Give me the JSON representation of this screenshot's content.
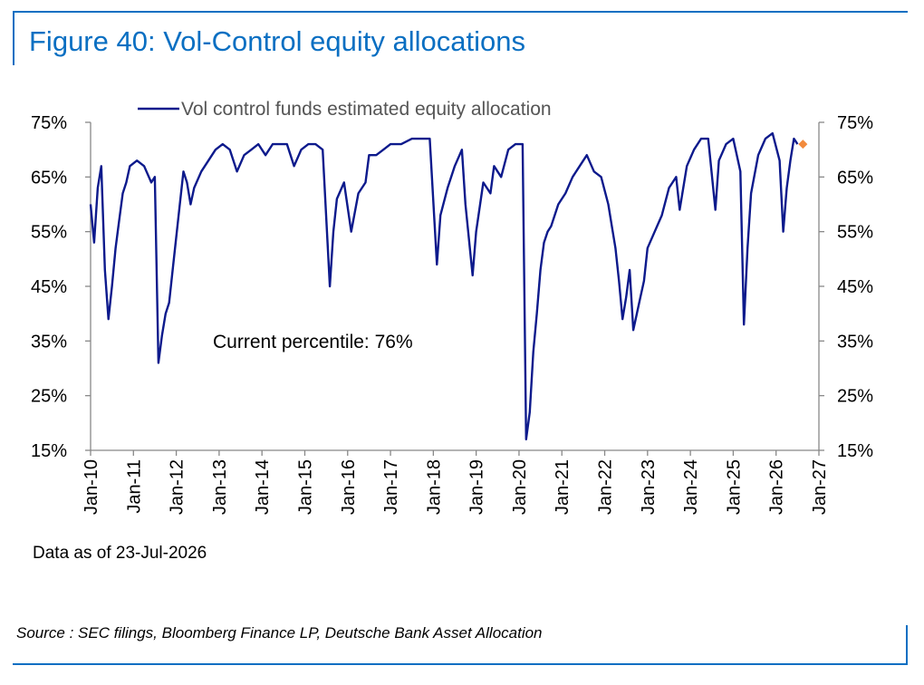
{
  "figure": {
    "title": "Figure 40: Vol-Control equity allocations",
    "data_note": "Data as of 23-Jul-2026",
    "source": "Source : SEC filings, Bloomberg Finance LP, Deutsche Bank Asset Allocation"
  },
  "colors": {
    "accent": "#0a6fc2",
    "series": "#0d1a8c",
    "marker": "#f28a3c",
    "axis": "#888888"
  },
  "chart_data": {
    "type": "line",
    "legend": [
      "Vol control funds estimated equity allocation"
    ],
    "legend_position": "top",
    "annotation": "Current percentile: 76%",
    "grid": false,
    "ylim": [
      15,
      75
    ],
    "yticks": [
      15,
      25,
      35,
      45,
      55,
      65,
      75
    ],
    "ytick_labels": [
      "15%",
      "25%",
      "35%",
      "45%",
      "55%",
      "65%",
      "75%"
    ],
    "xlim": [
      "2010-01",
      "2027-01"
    ],
    "xtick_labels": [
      "Jan-10",
      "Jan-11",
      "Jan-12",
      "Jan-13",
      "Jan-14",
      "Jan-15",
      "Jan-16",
      "Jan-17",
      "Jan-18",
      "Jan-19",
      "Jan-20",
      "Jan-21",
      "Jan-22",
      "Jan-23",
      "Jan-24",
      "Jan-25",
      "Jan-26",
      "Jan-27"
    ],
    "series": [
      {
        "name": "Vol control funds estimated equity allocation",
        "points": [
          [
            "2010-01",
            60
          ],
          [
            "2010-02",
            53
          ],
          [
            "2010-03",
            63
          ],
          [
            "2010-04",
            67
          ],
          [
            "2010-05",
            48
          ],
          [
            "2010-06",
            39
          ],
          [
            "2010-07",
            45
          ],
          [
            "2010-08",
            52
          ],
          [
            "2010-09",
            57
          ],
          [
            "2010-10",
            62
          ],
          [
            "2010-11",
            64
          ],
          [
            "2010-12",
            67
          ],
          [
            "2011-02",
            68
          ],
          [
            "2011-04",
            67
          ],
          [
            "2011-06",
            64
          ],
          [
            "2011-07",
            65
          ],
          [
            "2011-08",
            31
          ],
          [
            "2011-09",
            36
          ],
          [
            "2011-10",
            40
          ],
          [
            "2011-11",
            42
          ],
          [
            "2011-12",
            48
          ],
          [
            "2012-02",
            60
          ],
          [
            "2012-03",
            66
          ],
          [
            "2012-04",
            64
          ],
          [
            "2012-05",
            60
          ],
          [
            "2012-06",
            63
          ],
          [
            "2012-08",
            66
          ],
          [
            "2012-10",
            68
          ],
          [
            "2012-12",
            70
          ],
          [
            "2013-02",
            71
          ],
          [
            "2013-04",
            70
          ],
          [
            "2013-06",
            66
          ],
          [
            "2013-08",
            69
          ],
          [
            "2013-10",
            70
          ],
          [
            "2013-12",
            71
          ],
          [
            "2014-02",
            69
          ],
          [
            "2014-04",
            71
          ],
          [
            "2014-06",
            71
          ],
          [
            "2014-08",
            71
          ],
          [
            "2014-10",
            67
          ],
          [
            "2014-12",
            70
          ],
          [
            "2015-02",
            71
          ],
          [
            "2015-04",
            71
          ],
          [
            "2015-06",
            70
          ],
          [
            "2015-08",
            45
          ],
          [
            "2015-09",
            55
          ],
          [
            "2015-10",
            61
          ],
          [
            "2015-12",
            64
          ],
          [
            "2016-02",
            55
          ],
          [
            "2016-04",
            62
          ],
          [
            "2016-06",
            64
          ],
          [
            "2016-07",
            69
          ],
          [
            "2016-09",
            69
          ],
          [
            "2016-11",
            70
          ],
          [
            "2017-01",
            71
          ],
          [
            "2017-04",
            71
          ],
          [
            "2017-07",
            72
          ],
          [
            "2017-10",
            72
          ],
          [
            "2017-12",
            72
          ],
          [
            "2018-02",
            49
          ],
          [
            "2018-03",
            58
          ],
          [
            "2018-05",
            63
          ],
          [
            "2018-07",
            67
          ],
          [
            "2018-09",
            70
          ],
          [
            "2018-10",
            60
          ],
          [
            "2018-12",
            47
          ],
          [
            "2019-01",
            55
          ],
          [
            "2019-03",
            64
          ],
          [
            "2019-05",
            62
          ],
          [
            "2019-06",
            67
          ],
          [
            "2019-08",
            65
          ],
          [
            "2019-10",
            70
          ],
          [
            "2019-12",
            71
          ],
          [
            "2020-02",
            71
          ],
          [
            "2020-03",
            17
          ],
          [
            "2020-04",
            22
          ],
          [
            "2020-05",
            33
          ],
          [
            "2020-06",
            40
          ],
          [
            "2020-07",
            48
          ],
          [
            "2020-08",
            53
          ],
          [
            "2020-09",
            55
          ],
          [
            "2020-10",
            56
          ],
          [
            "2020-12",
            60
          ],
          [
            "2021-02",
            62
          ],
          [
            "2021-04",
            65
          ],
          [
            "2021-06",
            67
          ],
          [
            "2021-08",
            69
          ],
          [
            "2021-10",
            66
          ],
          [
            "2021-12",
            65
          ],
          [
            "2022-02",
            60
          ],
          [
            "2022-03",
            56
          ],
          [
            "2022-04",
            52
          ],
          [
            "2022-05",
            46
          ],
          [
            "2022-06",
            39
          ],
          [
            "2022-07",
            43
          ],
          [
            "2022-08",
            48
          ],
          [
            "2022-09",
            37
          ],
          [
            "2022-10",
            40
          ],
          [
            "2022-11",
            43
          ],
          [
            "2022-12",
            46
          ],
          [
            "2023-01",
            52
          ],
          [
            "2023-03",
            55
          ],
          [
            "2023-05",
            58
          ],
          [
            "2023-07",
            63
          ],
          [
            "2023-09",
            65
          ],
          [
            "2023-10",
            59
          ],
          [
            "2023-12",
            67
          ],
          [
            "2024-02",
            70
          ],
          [
            "2024-04",
            72
          ],
          [
            "2024-06",
            72
          ],
          [
            "2024-08",
            59
          ],
          [
            "2024-09",
            68
          ],
          [
            "2024-11",
            71
          ],
          [
            "2025-01",
            72
          ],
          [
            "2025-03",
            66
          ],
          [
            "2025-04",
            38
          ],
          [
            "2025-05",
            52
          ],
          [
            "2025-06",
            62
          ],
          [
            "2025-08",
            69
          ],
          [
            "2025-10",
            72
          ],
          [
            "2025-12",
            73
          ],
          [
            "2026-02",
            68
          ],
          [
            "2026-03",
            55
          ],
          [
            "2026-04",
            63
          ],
          [
            "2026-05",
            68
          ],
          [
            "2026-06",
            72
          ],
          [
            "2026-07",
            71
          ]
        ]
      }
    ],
    "current_marker": {
      "x": "2026-07",
      "y": 71
    }
  }
}
